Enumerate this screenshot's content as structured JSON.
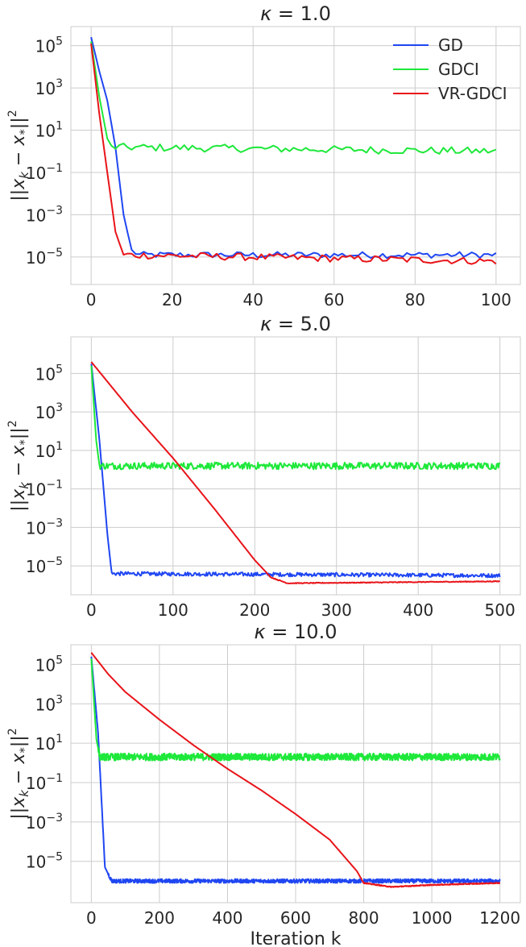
{
  "chart_data": [
    {
      "type": "line",
      "title": "κ = 1.0",
      "xlabel": "",
      "ylabel": "||x_k − x*||²",
      "yscale": "log",
      "xlim": [
        -5,
        106
      ],
      "ylim_exp": [
        -6.3,
        5.9
      ],
      "xticks": [
        0,
        20,
        40,
        60,
        80,
        100
      ],
      "xtick_labels": [
        "0",
        "20",
        "40",
        "60",
        "80",
        "100"
      ],
      "yticks_exp": [
        5,
        3,
        1,
        -1,
        -3,
        -5
      ],
      "legend": "top-right",
      "grid": true,
      "series": [
        {
          "name": "GD",
          "color": "#1f46f2",
          "n": 101,
          "decay": [
            [
              0,
              5.4
            ],
            [
              2,
              3.8
            ],
            [
              4,
              2.4
            ],
            [
              6,
              0.2
            ],
            [
              8,
              -3.0
            ],
            [
              10,
              -4.7
            ],
            [
              12,
              -4.9
            ],
            [
              101,
              -4.9
            ]
          ],
          "noise": 0.15,
          "floor": -4.9
        },
        {
          "name": "GDCI",
          "color": "#1ee83a",
          "n": 101,
          "decay": [
            [
              0,
              5.2
            ],
            [
              2,
              2.6
            ],
            [
              4,
              0.6
            ],
            [
              5,
              0.2
            ],
            [
              101,
              0.0
            ]
          ],
          "noise": 0.18,
          "floor": 0.0
        },
        {
          "name": "VR-GDCI",
          "color": "#e8141a",
          "n": 101,
          "decay": [
            [
              0,
              5.1
            ],
            [
              2,
              1.8
            ],
            [
              4,
              -1.0
            ],
            [
              6,
              -3.8
            ],
            [
              8,
              -4.9
            ],
            [
              101,
              -5.2
            ]
          ],
          "noise": 0.17,
          "floor": -5.2
        }
      ]
    },
    {
      "type": "line",
      "title": "κ = 5.0",
      "xlabel": "",
      "ylabel": "||x_k − x*||²",
      "yscale": "log",
      "xlim": [
        -25,
        525
      ],
      "ylim_exp": [
        -6.5,
        6.9
      ],
      "xticks": [
        0,
        100,
        200,
        300,
        400,
        500
      ],
      "xtick_labels": [
        "0",
        "100",
        "200",
        "300",
        "400",
        "500"
      ],
      "yticks_exp": [
        5,
        3,
        1,
        -1,
        -3,
        -5
      ],
      "legend": "none",
      "grid": true,
      "series": [
        {
          "name": "GD",
          "color": "#1f46f2",
          "n": 501,
          "decay": [
            [
              0,
              5.5
            ],
            [
              10,
              1.5
            ],
            [
              20,
              -3.5
            ],
            [
              25,
              -5.4
            ],
            [
              501,
              -5.5
            ]
          ],
          "noise": 0.1,
          "floor": -5.5
        },
        {
          "name": "GDCI",
          "color": "#1ee83a",
          "n": 501,
          "decay": [
            [
              0,
              5.4
            ],
            [
              6,
              1.5
            ],
            [
              10,
              0.2
            ],
            [
              501,
              0.2
            ]
          ],
          "noise": 0.18,
          "floor": 0.2
        },
        {
          "name": "VR-GDCI",
          "color": "#e8141a",
          "n": 501,
          "decay": [
            [
              0,
              5.6
            ],
            [
              50,
              3.0
            ],
            [
              100,
              0.6
            ],
            [
              150,
              -2.0
            ],
            [
              200,
              -4.7
            ],
            [
              220,
              -5.6
            ],
            [
              240,
              -5.9
            ],
            [
              501,
              -5.8
            ]
          ],
          "noise": 0.02,
          "floor": -5.8
        }
      ]
    },
    {
      "type": "line",
      "title": "κ = 10.0",
      "xlabel": "Iteration k",
      "ylabel": "||x_k − x*||²",
      "yscale": "log",
      "xlim": [
        -60,
        1260
      ],
      "ylim_exp": [
        -7.1,
        6.0
      ],
      "xticks": [
        0,
        200,
        400,
        600,
        800,
        1000,
        1200
      ],
      "xtick_labels": [
        "0",
        "200",
        "400",
        "600",
        "800",
        "1000",
        "1200"
      ],
      "yticks_exp": [
        5,
        3,
        1,
        -1,
        -3,
        -5
      ],
      "legend": "none",
      "grid": true,
      "series": [
        {
          "name": "GD",
          "color": "#1f46f2",
          "n": 1201,
          "decay": [
            [
              0,
              5.4
            ],
            [
              20,
              1.5
            ],
            [
              40,
              -5.3
            ],
            [
              60,
              -6.0
            ],
            [
              1201,
              -6.0
            ]
          ],
          "noise": 0.1,
          "floor": -6.0
        },
        {
          "name": "GDCI",
          "color": "#1ee83a",
          "n": 1201,
          "decay": [
            [
              0,
              5.3
            ],
            [
              15,
              1.2
            ],
            [
              25,
              0.3
            ],
            [
              1201,
              0.3
            ]
          ],
          "noise": 0.18,
          "floor": 0.3
        },
        {
          "name": "VR-GDCI",
          "color": "#e8141a",
          "n": 1201,
          "decay": [
            [
              0,
              5.6
            ],
            [
              50,
              4.5
            ],
            [
              100,
              3.6
            ],
            [
              200,
              2.2
            ],
            [
              300,
              0.9
            ],
            [
              400,
              -0.3
            ],
            [
              500,
              -1.4
            ],
            [
              600,
              -2.6
            ],
            [
              700,
              -3.9
            ],
            [
              780,
              -5.5
            ],
            [
              800,
              -6.1
            ],
            [
              880,
              -6.3
            ],
            [
              1000,
              -6.2
            ],
            [
              1201,
              -6.1
            ]
          ],
          "noise": 0.02,
          "floor": -6.1
        }
      ]
    }
  ],
  "legend_labels": [
    "GD",
    "GDCI",
    "VR-GDCI"
  ]
}
